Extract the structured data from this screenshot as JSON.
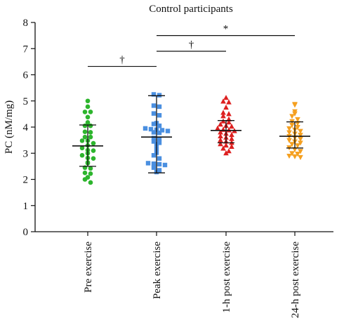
{
  "chart_data": {
    "type": "scatter",
    "title": "Control participants",
    "ylabel": "PC (nM/mg)",
    "xlabel": "",
    "ylim": [
      0,
      8
    ],
    "yticks": [
      0,
      1,
      2,
      3,
      4,
      5,
      6,
      7,
      8
    ],
    "grid": false,
    "categories": [
      "Pre exercise",
      "Peak exercise",
      "1-h post exercise",
      "24-h post exercise"
    ],
    "groups": [
      {
        "category": "Pre exercise",
        "marker": "circle",
        "color": "#2db52d",
        "mean": 3.28,
        "sd_low": 2.5,
        "sd_high": 4.08,
        "values": [
          5.0,
          4.78,
          4.58,
          4.58,
          4.38,
          4.18,
          4.05,
          4.05,
          3.82,
          3.8,
          3.62,
          3.62,
          3.48,
          3.48,
          3.38,
          3.3,
          3.2,
          3.12,
          3.1,
          3.0,
          2.92,
          2.82,
          2.8,
          2.65,
          2.62,
          2.45,
          2.42,
          2.25,
          2.22,
          2.08,
          2.0,
          1.88
        ]
      },
      {
        "category": "Peak exercise",
        "marker": "square",
        "color": "#4a8fe0",
        "mean": 3.62,
        "sd_low": 2.25,
        "sd_high": 5.2,
        "values": [
          5.25,
          5.22,
          4.82,
          4.78,
          4.52,
          4.45,
          4.15,
          4.12,
          4.05,
          3.95,
          3.92,
          3.9,
          3.88,
          3.85,
          3.8,
          3.78,
          3.58,
          3.55,
          3.45,
          3.4,
          3.35,
          3.18,
          3.02,
          2.92,
          2.8,
          2.62,
          2.6,
          2.58,
          2.55,
          2.45,
          2.35,
          2.28
        ]
      },
      {
        "category": "1-h post exercise",
        "marker": "triangle-up",
        "color": "#dd2020",
        "mean": 3.87,
        "sd_low": 3.4,
        "sd_high": 4.25,
        "values": [
          5.12,
          4.98,
          4.95,
          4.75,
          4.55,
          4.5,
          4.42,
          4.3,
          4.22,
          4.18,
          4.1,
          4.05,
          4.02,
          3.95,
          3.9,
          3.88,
          3.85,
          3.8,
          3.75,
          3.7,
          3.65,
          3.6,
          3.55,
          3.5,
          3.45,
          3.4,
          3.35,
          3.3,
          3.25,
          3.18,
          3.08,
          3.0
        ]
      },
      {
        "category": "24-h post exercise",
        "marker": "triangle-down",
        "color": "#f5a020",
        "mean": 3.65,
        "sd_low": 3.2,
        "sd_high": 4.2,
        "values": [
          4.88,
          4.85,
          4.6,
          4.52,
          4.42,
          4.3,
          4.22,
          4.15,
          4.08,
          4.0,
          3.95,
          3.9,
          3.85,
          3.8,
          3.75,
          3.7,
          3.65,
          3.6,
          3.55,
          3.5,
          3.45,
          3.4,
          3.35,
          3.3,
          3.22,
          3.15,
          3.08,
          3.0,
          2.98,
          2.9,
          2.88,
          2.85
        ]
      }
    ],
    "comparisons": [
      {
        "from": "Pre exercise",
        "to": "Peak exercise",
        "y": 6.32,
        "symbol": "†"
      },
      {
        "from": "Peak exercise",
        "to": "1-h post exercise",
        "y": 6.9,
        "symbol": "†"
      },
      {
        "from": "Peak exercise",
        "to": "24-h post exercise",
        "y": 7.5,
        "symbol": "*"
      }
    ]
  }
}
